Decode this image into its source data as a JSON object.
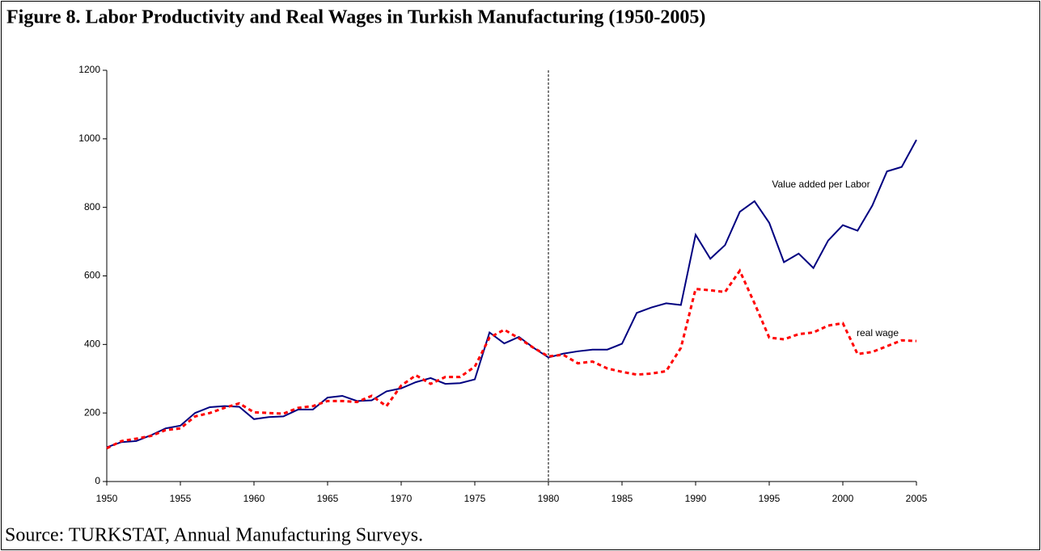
{
  "chart_data": {
    "type": "line",
    "title": "Figure 8. Labor Productivity and Real Wages in Turkish Manufacturing (1950-2005)",
    "source": "Source: TURKSTAT, Annual Manufacturing Surveys.",
    "x": [
      1950,
      1951,
      1952,
      1953,
      1954,
      1955,
      1956,
      1957,
      1958,
      1959,
      1960,
      1961,
      1962,
      1963,
      1964,
      1965,
      1966,
      1967,
      1968,
      1969,
      1970,
      1971,
      1972,
      1973,
      1974,
      1975,
      1976,
      1977,
      1978,
      1979,
      1980,
      1981,
      1982,
      1983,
      1984,
      1985,
      1986,
      1987,
      1988,
      1989,
      1990,
      1991,
      1992,
      1993,
      1994,
      1995,
      1996,
      1997,
      1998,
      1999,
      2000,
      2001,
      2002,
      2003,
      2004,
      2005
    ],
    "series": [
      {
        "name": "Value added per Labor",
        "color": "#000080",
        "dash": false,
        "values": [
          100,
          115,
          118,
          135,
          155,
          163,
          200,
          217,
          220,
          218,
          182,
          188,
          190,
          210,
          210,
          245,
          250,
          235,
          237,
          263,
          272,
          290,
          302,
          285,
          287,
          298,
          435,
          403,
          422,
          390,
          362,
          373,
          380,
          385,
          385,
          402,
          492,
          508,
          520,
          515,
          720,
          650,
          690,
          787,
          818,
          755,
          640,
          665,
          623,
          703,
          748,
          732,
          805,
          905,
          918,
          997
        ]
      },
      {
        "name": "real wage",
        "color": "#ff0000",
        "dash": true,
        "values": [
          97,
          118,
          125,
          133,
          150,
          155,
          190,
          200,
          215,
          228,
          202,
          200,
          198,
          215,
          220,
          235,
          235,
          232,
          250,
          220,
          280,
          310,
          285,
          305,
          305,
          335,
          420,
          443,
          418,
          390,
          365,
          370,
          345,
          350,
          330,
          320,
          312,
          315,
          322,
          390,
          562,
          558,
          553,
          615,
          520,
          420,
          415,
          430,
          435,
          455,
          462,
          372,
          378,
          395,
          412,
          410
        ]
      }
    ],
    "xlim": [
      1950,
      2005
    ],
    "xticks": [
      1950,
      1955,
      1960,
      1965,
      1970,
      1975,
      1980,
      1985,
      1990,
      1995,
      2000,
      2005
    ],
    "ylim": [
      0,
      1200
    ],
    "yticks": [
      0,
      200,
      400,
      600,
      800,
      1000,
      1200
    ],
    "vline": 1980
  }
}
